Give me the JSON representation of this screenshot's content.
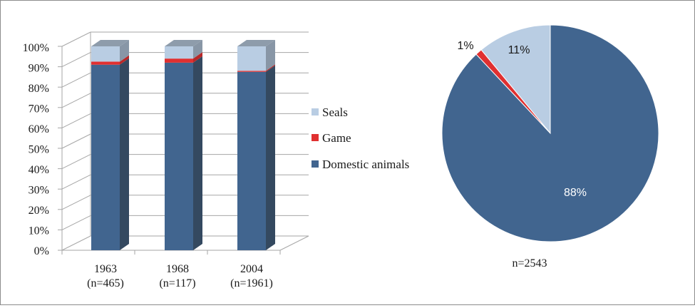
{
  "colors": {
    "domestic": "#41658f",
    "domestic_side": "#344960",
    "game": "#e03030",
    "game_side": "#b82828",
    "seals": "#b9cde3",
    "seals_side": "#8896a6",
    "top": "#8e9cab",
    "grid": "#a6a6a6"
  },
  "chart_data": [
    {
      "type": "bar",
      "stacked": true,
      "categories": [
        "1963",
        "1968",
        "2004"
      ],
      "category_notes": [
        "(n=465)",
        "(n=117)",
        "(n=1961)"
      ],
      "series": [
        {
          "name": "Domestic animals",
          "values": [
            91,
            92,
            87.5
          ]
        },
        {
          "name": "Game",
          "values": [
            1.5,
            2,
            0.5
          ]
        },
        {
          "name": "Seals",
          "values": [
            7.5,
            6,
            12
          ]
        }
      ],
      "ylim": [
        0,
        100
      ],
      "yticks": [
        "0%",
        "10%",
        "20%",
        "30%",
        "40%",
        "50%",
        "60%",
        "70%",
        "80%",
        "90%",
        "100%"
      ],
      "legend": [
        "Seals",
        "Game",
        "Domestic animals"
      ],
      "legend_position": "right",
      "grid": true
    },
    {
      "type": "pie",
      "slices": [
        {
          "name": "Seals",
          "value": 11,
          "label": "11%"
        },
        {
          "name": "Game",
          "value": 1,
          "label": "1%"
        },
        {
          "name": "Domestic animals",
          "value": 88,
          "label": "88%"
        }
      ],
      "note": "n=2543"
    }
  ]
}
